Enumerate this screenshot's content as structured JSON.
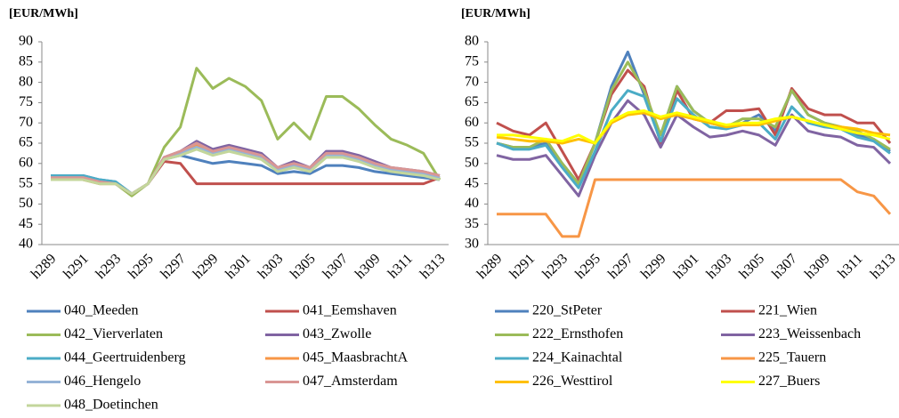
{
  "chart_data": [
    {
      "type": "line",
      "y_label": "[EUR/MWh]",
      "categories": [
        "h289",
        null,
        "h291",
        null,
        "h293",
        null,
        "h295",
        null,
        "h297",
        null,
        "h299",
        null,
        "h301",
        null,
        "h303",
        null,
        "h305",
        null,
        "h307",
        null,
        "h309",
        null,
        "h311",
        null,
        "h313"
      ],
      "ylim": [
        40,
        90
      ],
      "yticks": [
        40,
        45,
        50,
        55,
        60,
        65,
        70,
        75,
        80,
        85,
        90
      ],
      "series": [
        {
          "name": "040_Meeden",
          "color": "#4f81bd",
          "values": [
            57,
            57,
            57,
            56,
            55.5,
            52.5,
            55,
            61.5,
            62,
            61,
            60,
            60.5,
            60,
            59.5,
            57.5,
            58,
            57.5,
            59.5,
            59.5,
            59,
            58,
            57.5,
            57,
            56.5,
            56
          ]
        },
        {
          "name": "041_Eemshaven",
          "color": "#c0504d",
          "values": [
            56,
            56,
            56,
            55.5,
            55,
            52.5,
            55,
            60.5,
            60,
            55,
            55,
            55,
            55,
            55,
            55,
            55,
            55,
            55,
            55,
            55,
            55,
            55,
            55,
            55,
            56.5
          ]
        },
        {
          "name": "042_Vierverlaten",
          "color": "#9bbb59",
          "values": [
            56,
            56,
            56,
            55,
            55,
            52,
            55,
            64,
            69,
            83.5,
            78.5,
            81,
            79,
            75.5,
            66,
            70,
            66,
            76.5,
            76.5,
            73.5,
            69.5,
            66,
            64.5,
            62.5,
            56
          ]
        },
        {
          "name": "043_Zwolle",
          "color": "#8064a2",
          "values": [
            56.5,
            56.5,
            56.5,
            55.5,
            55,
            52.5,
            55,
            61.5,
            63,
            65.5,
            63.5,
            64.5,
            63.5,
            62.5,
            59,
            60.5,
            59,
            63,
            63,
            62,
            60.5,
            59,
            58.5,
            58,
            57
          ]
        },
        {
          "name": "044_Geertruidenberg",
          "color": "#4bacc6",
          "values": [
            57,
            57,
            57,
            56,
            55.5,
            52.5,
            55,
            61,
            62,
            64,
            62.5,
            63.5,
            62.5,
            61.5,
            58.5,
            59.5,
            58.5,
            62,
            62,
            61,
            59.5,
            58.5,
            58,
            57.5,
            56.5
          ]
        },
        {
          "name": "045_MaasbrachtA",
          "color": "#f79646",
          "values": [
            56,
            56,
            56,
            55,
            55,
            52.5,
            55,
            61,
            62.5,
            64.5,
            62.5,
            63.5,
            62.5,
            61.5,
            58.5,
            59.5,
            58.5,
            62,
            62,
            61,
            59.5,
            58.5,
            58,
            57.5,
            56.5
          ]
        },
        {
          "name": "046_Hengelo",
          "color": "#95b3d7",
          "values": [
            56.5,
            56.5,
            56.5,
            55.5,
            55,
            52.5,
            55,
            61,
            62.5,
            64,
            62.5,
            63.5,
            62.5,
            61.5,
            58.5,
            59.5,
            58.5,
            62,
            62,
            61,
            59.5,
            58.5,
            58,
            57.5,
            56.5
          ]
        },
        {
          "name": "047_Amsterdam",
          "color": "#d99694",
          "values": [
            56.5,
            56.5,
            56.5,
            55.5,
            55,
            52.5,
            55,
            61.5,
            63,
            65,
            63,
            64,
            63,
            62,
            59,
            60,
            59,
            62.5,
            62.5,
            61.5,
            60,
            59,
            58.5,
            58,
            57
          ]
        },
        {
          "name": "048_Doetinchen",
          "color": "#c3d69b",
          "values": [
            56,
            56,
            56,
            55,
            55,
            52.5,
            55,
            61,
            62,
            63.5,
            62,
            63,
            62,
            61,
            58,
            59,
            58,
            61.5,
            61.5,
            60.5,
            59,
            58,
            57.5,
            57,
            56
          ]
        }
      ]
    },
    {
      "type": "line",
      "y_label": "[EUR/MWh]",
      "categories": [
        "h289",
        null,
        "h291",
        null,
        "h293",
        null,
        "h295",
        null,
        "h297",
        null,
        "h299",
        null,
        "h301",
        null,
        "h303",
        null,
        "h305",
        null,
        "h307",
        null,
        "h309",
        null,
        "h311",
        null,
        "h313"
      ],
      "ylim": [
        30,
        80
      ],
      "yticks": [
        30,
        35,
        40,
        45,
        50,
        55,
        60,
        65,
        70,
        75,
        80
      ],
      "series": [
        {
          "name": "220_StPeter",
          "color": "#4f81bd",
          "values": [
            55,
            54,
            54,
            55,
            50,
            45,
            55,
            69,
            77.5,
            67,
            57,
            69,
            63,
            60,
            59,
            60,
            62,
            58,
            68,
            62,
            60,
            59,
            57,
            56,
            53
          ]
        },
        {
          "name": "221_Wien",
          "color": "#c0504d",
          "values": [
            60,
            58,
            57,
            60,
            53,
            46,
            55,
            67,
            73,
            69,
            55,
            68,
            61,
            60,
            63,
            63,
            63.5,
            57,
            68.5,
            63.5,
            62,
            62,
            60,
            60,
            55
          ]
        },
        {
          "name": "222_Ernsthofen",
          "color": "#9bbb59",
          "values": [
            55,
            54,
            54,
            56,
            50,
            45,
            55,
            68,
            75,
            68,
            57,
            69,
            63,
            60,
            59,
            61,
            61,
            59,
            68,
            62,
            60,
            59,
            58,
            56,
            53.5
          ]
        },
        {
          "name": "223_Weissenbach",
          "color": "#8064a2",
          "values": [
            52,
            51,
            51,
            52,
            47,
            42,
            52,
            60,
            65.5,
            62,
            54,
            62,
            59,
            56.5,
            57,
            58,
            57,
            54.5,
            62,
            58,
            57,
            56.5,
            54.5,
            54,
            50
          ]
        },
        {
          "name": "224_Kainachtal",
          "color": "#4bacc6",
          "values": [
            55,
            53.5,
            53.5,
            54.5,
            49,
            44,
            53,
            63,
            68,
            66.5,
            55.5,
            66,
            62,
            59,
            58.5,
            59.5,
            60,
            56,
            64,
            60,
            59,
            58.5,
            56.5,
            55.5,
            52.5
          ]
        },
        {
          "name": "225_Tauern",
          "color": "#f79646",
          "values": [
            37.5,
            37.5,
            37.5,
            37.5,
            32,
            32,
            46,
            46,
            46,
            46,
            46,
            46,
            46,
            46,
            46,
            46,
            46,
            46,
            46,
            46,
            46,
            46,
            43,
            42,
            37.5
          ]
        },
        {
          "name": "226_Westtirol",
          "color": "#ffc000",
          "values": [
            56.5,
            56,
            55.5,
            55.5,
            55,
            56,
            55,
            60,
            62,
            62.5,
            61,
            62,
            61,
            60,
            59,
            59.5,
            59.5,
            60.5,
            61.5,
            60.5,
            59.5,
            59,
            58.5,
            57.5,
            57
          ]
        },
        {
          "name": "227_Buers",
          "color": "#ffff00",
          "values": [
            57,
            57,
            56.5,
            56,
            55.5,
            57,
            55,
            60.5,
            62.5,
            63,
            61.5,
            62.5,
            61.5,
            60.5,
            59.5,
            60,
            60,
            61,
            61.5,
            60.5,
            59.5,
            58.5,
            57.5,
            57,
            56
          ]
        }
      ]
    }
  ]
}
